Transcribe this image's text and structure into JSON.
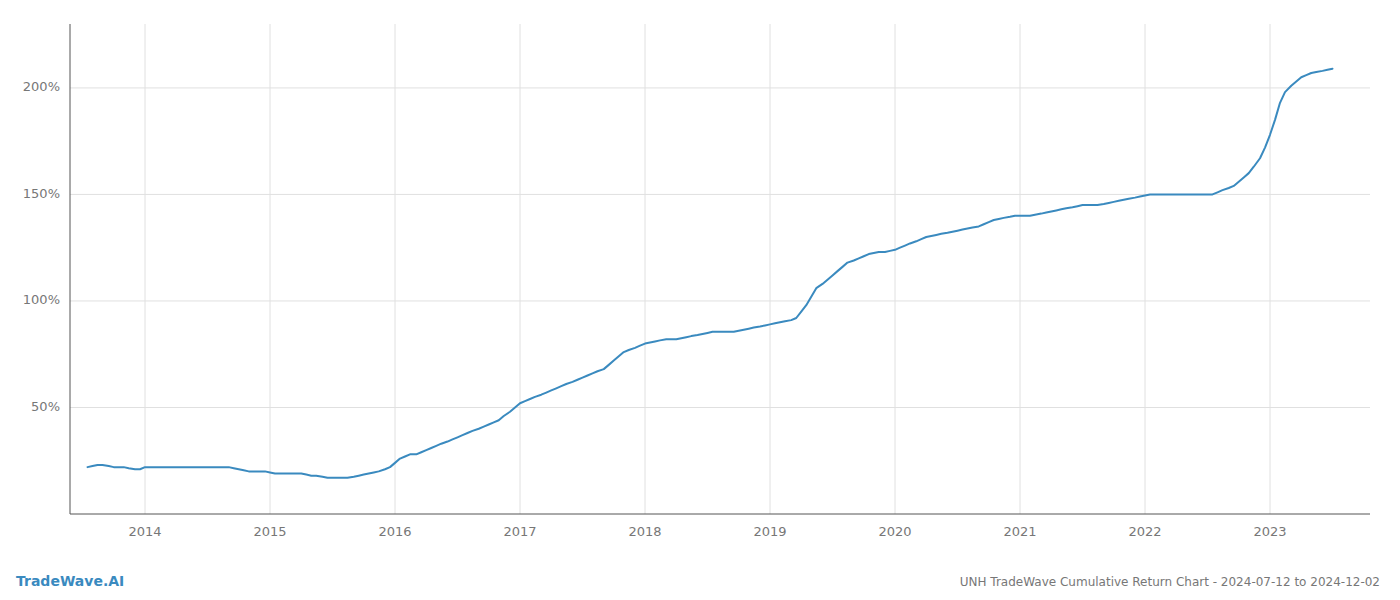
{
  "chart_data": {
    "type": "line",
    "title": "UNH TradeWave Cumulative Return Chart - 2024-07-12 to 2024-12-02",
    "annotations": [
      "TradeWave.AI"
    ],
    "color": "#3a8abf",
    "grid": true,
    "x": [
      2013.54,
      2013.58,
      2013.62,
      2013.66,
      2013.71,
      2013.75,
      2013.79,
      2013.83,
      2013.87,
      2013.92,
      2013.96,
      2014.0,
      2014.04,
      2014.08,
      2014.12,
      2014.17,
      2014.21,
      2014.25,
      2014.29,
      2014.33,
      2014.37,
      2014.42,
      2014.46,
      2014.5,
      2014.54,
      2014.58,
      2014.62,
      2014.67,
      2014.71,
      2014.75,
      2014.79,
      2014.83,
      2014.87,
      2014.92,
      2014.96,
      2015.0,
      2015.04,
      2015.08,
      2015.12,
      2015.17,
      2015.21,
      2015.25,
      2015.29,
      2015.33,
      2015.37,
      2015.42,
      2015.46,
      2015.5,
      2015.54,
      2015.58,
      2015.62,
      2015.67,
      2015.71,
      2015.75,
      2015.79,
      2015.83,
      2015.87,
      2015.92,
      2015.96,
      2016.0,
      2016.04,
      2016.08,
      2016.12,
      2016.17,
      2016.21,
      2016.25,
      2016.29,
      2016.33,
      2016.37,
      2016.42,
      2016.46,
      2016.5,
      2016.54,
      2016.58,
      2016.62,
      2016.67,
      2016.71,
      2016.75,
      2016.79,
      2016.83,
      2016.87,
      2016.92,
      2016.96,
      2017.0,
      2017.04,
      2017.08,
      2017.12,
      2017.17,
      2017.21,
      2017.25,
      2017.29,
      2017.33,
      2017.37,
      2017.42,
      2017.46,
      2017.5,
      2017.54,
      2017.58,
      2017.62,
      2017.67,
      2017.71,
      2017.75,
      2017.79,
      2017.83,
      2017.87,
      2017.92,
      2017.96,
      2018.0,
      2018.04,
      2018.08,
      2018.12,
      2018.17,
      2018.21,
      2018.25,
      2018.29,
      2018.33,
      2018.37,
      2018.42,
      2018.46,
      2018.5,
      2018.54,
      2018.58,
      2018.62,
      2018.67,
      2018.71,
      2018.75,
      2018.79,
      2018.83,
      2018.87,
      2018.92,
      2018.96,
      2019.0,
      2019.04,
      2019.08,
      2019.12,
      2019.17,
      2019.21,
      2019.25,
      2019.29,
      2019.33,
      2019.37,
      2019.42,
      2019.46,
      2019.5,
      2019.54,
      2019.58,
      2019.62,
      2019.67,
      2019.71,
      2019.75,
      2019.79,
      2019.83,
      2019.87,
      2019.92,
      2019.96,
      2020.0,
      2020.04,
      2020.08,
      2020.12,
      2020.17,
      2020.21,
      2020.25,
      2020.29,
      2020.33,
      2020.37,
      2020.42,
      2020.46,
      2020.5,
      2020.54,
      2020.58,
      2020.62,
      2020.67,
      2020.71,
      2020.75,
      2020.79,
      2020.83,
      2020.87,
      2020.92,
      2020.96,
      2021.0,
      2021.04,
      2021.08,
      2021.12,
      2021.17,
      2021.21,
      2021.25,
      2021.29,
      2021.33,
      2021.37,
      2021.42,
      2021.46,
      2021.5,
      2021.54,
      2021.58,
      2021.62,
      2021.67,
      2021.71,
      2021.75,
      2021.79,
      2021.83,
      2021.87,
      2021.92,
      2021.96,
      2022.0,
      2022.04,
      2022.08,
      2022.12,
      2022.17,
      2022.21,
      2022.25,
      2022.29,
      2022.33,
      2022.37,
      2022.42,
      2022.46,
      2022.5,
      2022.54,
      2022.58,
      2022.62,
      2022.67,
      2022.71,
      2022.75,
      2022.79,
      2022.83,
      2022.87,
      2022.92,
      2022.96,
      2023.0,
      2023.04,
      2023.08,
      2023.12,
      2023.17,
      2023.21,
      2023.25,
      2023.29,
      2023.33,
      2023.37,
      2023.42,
      2023.46,
      2023.5
    ],
    "values": [
      22,
      22.5,
      23,
      23,
      22.5,
      22,
      22,
      22,
      21.5,
      21,
      21,
      22,
      22,
      22,
      22,
      22,
      22,
      22,
      22,
      22,
      22,
      22,
      22,
      22,
      22,
      22,
      22,
      22,
      21.5,
      21,
      20.5,
      20,
      20,
      20,
      20,
      19.5,
      19,
      19,
      19,
      19,
      19,
      19,
      18.5,
      18,
      18,
      17.5,
      17,
      17,
      17,
      17,
      17,
      17.5,
      18,
      18.5,
      19,
      19.5,
      20,
      21,
      22,
      24,
      26,
      27,
      28,
      28,
      29,
      30,
      31,
      32,
      33,
      34,
      35,
      36,
      37,
      38,
      39,
      40,
      41,
      42,
      43,
      44,
      46,
      48,
      50,
      52,
      53,
      54,
      55,
      56,
      57,
      58,
      59,
      60,
      61,
      62,
      63,
      64,
      65,
      66,
      67,
      68,
      70,
      72,
      74,
      76,
      77,
      78,
      79,
      80,
      80.5,
      81,
      81.5,
      82,
      82,
      82,
      82.5,
      83,
      83.5,
      84,
      84.5,
      85,
      85.5,
      85.5,
      85.5,
      85.5,
      85.5,
      86,
      86.5,
      87,
      87.5,
      88,
      88.5,
      89,
      89.5,
      90,
      90.5,
      91,
      92,
      95,
      98,
      102,
      106,
      108,
      110,
      112,
      114,
      116,
      118,
      119,
      120,
      121,
      122,
      122.5,
      123,
      123,
      123.5,
      124,
      125,
      126,
      127,
      128,
      129,
      130,
      130.5,
      131,
      131.5,
      132,
      132.5,
      133,
      133.5,
      134,
      134.5,
      135,
      136,
      137,
      138,
      138.5,
      139,
      139.5,
      140,
      140,
      140,
      140,
      140.5,
      141,
      141.5,
      142,
      142.5,
      143,
      143.5,
      144,
      144.5,
      145,
      145,
      145,
      145,
      145.5,
      146,
      146.5,
      147,
      147.5,
      148,
      148.5,
      149,
      149.5,
      150,
      150,
      150,
      150,
      150,
      150,
      150,
      150,
      150,
      150,
      150,
      150,
      150,
      151,
      152,
      153,
      154,
      156,
      158,
      160,
      163,
      167,
      172,
      178,
      185,
      193,
      198,
      201,
      203,
      205,
      206,
      207,
      207.5,
      208,
      208.5,
      209
    ],
    "xlim": [
      2013.4,
      2023.8
    ],
    "xticks": [
      2014,
      2015,
      2016,
      2017,
      2018,
      2019,
      2020,
      2021,
      2022,
      2023
    ],
    "ylim": [
      0,
      230
    ],
    "yticks": [
      {
        "value": 50,
        "label": "50%"
      },
      {
        "value": 100,
        "label": "100%"
      },
      {
        "value": 150,
        "label": "150%"
      },
      {
        "value": 200,
        "label": "200%"
      }
    ]
  }
}
